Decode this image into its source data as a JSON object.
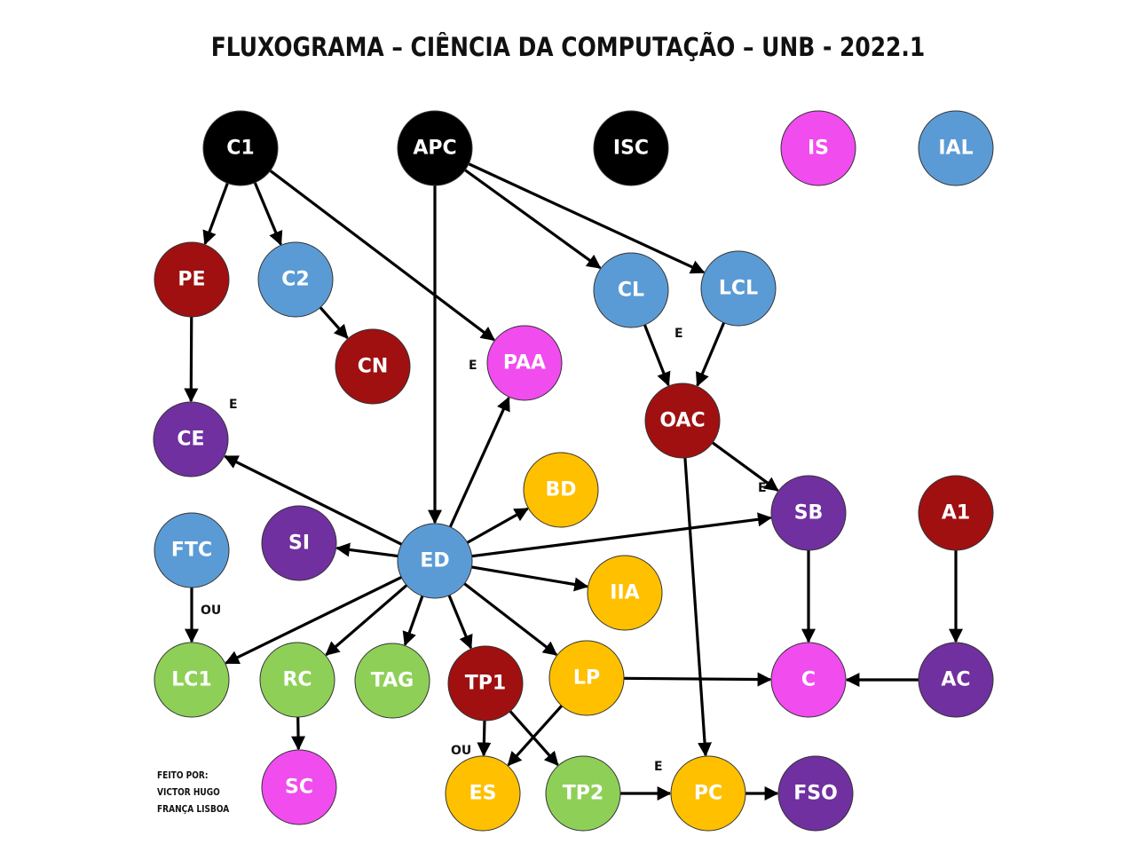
{
  "title": "FLUXOGRAMA – CIÊNCIA DA COMPUTAÇÃO – UNB - 2022.1",
  "credits": [
    "FEITO POR:",
    "VICTOR HUGO",
    "FRANÇA LISBOA"
  ],
  "colors": {
    "black": "#000000",
    "red": "#a01010",
    "blue": "#5b9bd5",
    "pink": "#f04cee",
    "purple": "#7030a0",
    "green": "#8ed057",
    "yellow": "#ffc000"
  },
  "nodes": [
    {
      "id": "C1",
      "label": "C1",
      "color": "black"
    },
    {
      "id": "APC",
      "label": "APC",
      "color": "black"
    },
    {
      "id": "ISC",
      "label": "ISC",
      "color": "black"
    },
    {
      "id": "IS",
      "label": "IS",
      "color": "pink"
    },
    {
      "id": "IAL",
      "label": "IAL",
      "color": "blue"
    },
    {
      "id": "PE",
      "label": "PE",
      "color": "red"
    },
    {
      "id": "C2",
      "label": "C2",
      "color": "blue"
    },
    {
      "id": "CN",
      "label": "CN",
      "color": "red"
    },
    {
      "id": "PAA",
      "label": "PAA",
      "color": "pink"
    },
    {
      "id": "CL",
      "label": "CL",
      "color": "blue"
    },
    {
      "id": "LCL",
      "label": "LCL",
      "color": "blue"
    },
    {
      "id": "OAC",
      "label": "OAC",
      "color": "red"
    },
    {
      "id": "CE",
      "label": "CE",
      "color": "purple"
    },
    {
      "id": "BD",
      "label": "BD",
      "color": "yellow"
    },
    {
      "id": "SB",
      "label": "SB",
      "color": "purple"
    },
    {
      "id": "A1",
      "label": "A1",
      "color": "red"
    },
    {
      "id": "FTC",
      "label": "FTC",
      "color": "blue"
    },
    {
      "id": "SI",
      "label": "SI",
      "color": "purple"
    },
    {
      "id": "ED",
      "label": "ED",
      "color": "blue"
    },
    {
      "id": "IIA",
      "label": "IIA",
      "color": "yellow"
    },
    {
      "id": "LC1",
      "label": "LC1",
      "color": "green"
    },
    {
      "id": "RC",
      "label": "RC",
      "color": "green"
    },
    {
      "id": "TAG",
      "label": "TAG",
      "color": "green"
    },
    {
      "id": "TP1",
      "label": "TP1",
      "color": "red"
    },
    {
      "id": "LP",
      "label": "LP",
      "color": "yellow"
    },
    {
      "id": "C",
      "label": "C",
      "color": "pink"
    },
    {
      "id": "AC",
      "label": "AC",
      "color": "purple"
    },
    {
      "id": "SC",
      "label": "SC",
      "color": "pink"
    },
    {
      "id": "ES",
      "label": "ES",
      "color": "yellow"
    },
    {
      "id": "TP2",
      "label": "TP2",
      "color": "green"
    },
    {
      "id": "PC",
      "label": "PC",
      "color": "yellow"
    },
    {
      "id": "FSO",
      "label": "FSO",
      "color": "purple"
    }
  ],
  "edges": [
    {
      "from": "C1",
      "to": "PE"
    },
    {
      "from": "C1",
      "to": "C2"
    },
    {
      "from": "C1",
      "to": "PAA"
    },
    {
      "from": "C2",
      "to": "CN"
    },
    {
      "from": "PE",
      "to": "CE"
    },
    {
      "from": "APC",
      "to": "ED"
    },
    {
      "from": "APC",
      "to": "CL"
    },
    {
      "from": "APC",
      "to": "LCL"
    },
    {
      "from": "CL",
      "to": "OAC"
    },
    {
      "from": "LCL",
      "to": "OAC"
    },
    {
      "from": "OAC",
      "to": "SB"
    },
    {
      "from": "OAC",
      "to": "PC"
    },
    {
      "from": "ED",
      "to": "CE"
    },
    {
      "from": "ED",
      "to": "PAA"
    },
    {
      "from": "ED",
      "to": "BD"
    },
    {
      "from": "ED",
      "to": "SB"
    },
    {
      "from": "ED",
      "to": "SI"
    },
    {
      "from": "ED",
      "to": "IIA"
    },
    {
      "from": "ED",
      "to": "LC1"
    },
    {
      "from": "ED",
      "to": "RC"
    },
    {
      "from": "ED",
      "to": "TAG"
    },
    {
      "from": "ED",
      "to": "TP1"
    },
    {
      "from": "ED",
      "to": "LP"
    },
    {
      "from": "FTC",
      "to": "LC1"
    },
    {
      "from": "RC",
      "to": "SC"
    },
    {
      "from": "TP1",
      "to": "ES"
    },
    {
      "from": "TP1",
      "to": "TP2"
    },
    {
      "from": "LP",
      "to": "ES"
    },
    {
      "from": "LP",
      "to": "C"
    },
    {
      "from": "SB",
      "to": "C"
    },
    {
      "from": "AC",
      "to": "C"
    },
    {
      "from": "A1",
      "to": "AC"
    },
    {
      "from": "TP2",
      "to": "PC"
    },
    {
      "from": "PC",
      "to": "FSO"
    }
  ],
  "edge_labels": [
    {
      "text": "E",
      "near": "OAC"
    },
    {
      "text": "E",
      "near": "PAA"
    },
    {
      "text": "E",
      "near": "CE"
    },
    {
      "text": "E",
      "near": "SB"
    },
    {
      "text": "OU",
      "near": "LC1"
    },
    {
      "text": "OU",
      "near": "ES"
    },
    {
      "text": "E",
      "near": "PC"
    }
  ]
}
